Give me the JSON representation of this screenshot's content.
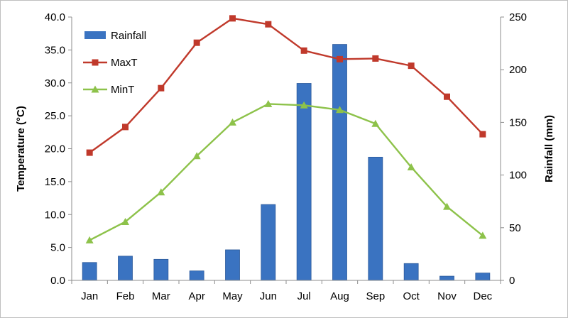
{
  "chart_data": {
    "type": "bar",
    "categories": [
      "Jan",
      "Feb",
      "Mar",
      "Apr",
      "May",
      "Jun",
      "Jul",
      "Aug",
      "Sep",
      "Oct",
      "Nov",
      "Dec"
    ],
    "series": [
      {
        "name": "Rainfall",
        "type": "bar",
        "axis": "right",
        "color": "#3a73c1",
        "values": [
          17,
          23,
          20,
          9,
          29,
          72,
          187,
          224,
          117,
          16,
          4,
          7
        ]
      },
      {
        "name": "MaxT",
        "type": "line",
        "axis": "left",
        "color": "#c0392b",
        "marker": "square",
        "values": [
          19.4,
          23.3,
          29.2,
          36.1,
          39.8,
          38.9,
          34.9,
          33.6,
          33.7,
          32.6,
          27.9,
          22.2
        ]
      },
      {
        "name": "MinT",
        "type": "line",
        "axis": "left",
        "color": "#8dc24a",
        "marker": "triangle",
        "values": [
          6.1,
          8.9,
          13.4,
          18.9,
          24.0,
          26.8,
          26.6,
          25.9,
          23.8,
          17.2,
          11.2,
          6.8
        ]
      }
    ],
    "ylabel": "Temperature (°C)",
    "y2label": "Rainfall (mm)",
    "ylim": [
      0,
      40
    ],
    "y2lim": [
      0,
      250
    ],
    "yticks": [
      "0.0",
      "5.0",
      "10.0",
      "15.0",
      "20.0",
      "25.0",
      "30.0",
      "35.0",
      "40.0"
    ],
    "y2ticks": [
      "0",
      "50",
      "100",
      "150",
      "200",
      "250"
    ],
    "grid": false,
    "legend": "top-left"
  }
}
